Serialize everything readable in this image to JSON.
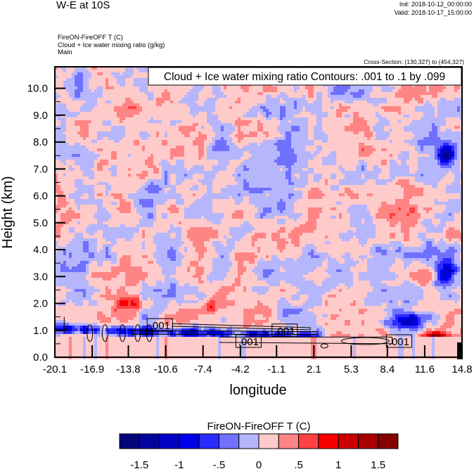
{
  "header": {
    "title": "W-E at 10S",
    "init": "Init: 2018-10-12_00:00:00",
    "valid": "Valid: 2018-10-17_15:00:00",
    "field_lines": [
      "FireON-FireOFF T   (C)",
      "Cloud + Ice water mixing ratio   (g/kg)",
      "Main"
    ],
    "cross_section": "Cross-Section: (130,327) to (454,327)"
  },
  "chart_data": {
    "type": "heatmap",
    "title": "W-E at 10S",
    "xlabel": "longitude",
    "ylabel": "Height (km)",
    "xlim": [
      -20.1,
      14.8
    ],
    "ylim": [
      0,
      10.8
    ],
    "x_ticks": [
      "-20.1",
      "-16.9",
      "-13.8",
      "-10.6",
      "-7.4",
      "-4.2",
      "-1.1",
      "2.1",
      "5.3",
      "8.4",
      "11.6",
      "14.8"
    ],
    "x_tick_values": [
      -20.1,
      -16.9,
      -13.8,
      -10.6,
      -7.4,
      -4.2,
      -1.1,
      2.1,
      5.3,
      8.4,
      11.6,
      14.8
    ],
    "y_ticks": [
      "0.0",
      "1.0",
      "2.0",
      "3.0",
      "4.0",
      "5.0",
      "6.0",
      "7.0",
      "8.0",
      "9.0",
      "10.0"
    ],
    "y_tick_values": [
      0,
      1,
      2,
      3,
      4,
      5,
      6,
      7,
      8,
      9,
      10
    ],
    "shading": {
      "variable": "FireON-FireOFF T  (C)",
      "levels": [
        -1.5,
        -1.25,
        -1,
        -0.75,
        -0.5,
        -0.25,
        0,
        0.25,
        0.5,
        0.75,
        1,
        1.25,
        1.5
      ],
      "colors": [
        "#04047d",
        "#0303a0",
        "#0202c4",
        "#0000ea",
        "#2b2bff",
        "#7070ff",
        "#b6b6fc",
        "#fecaca",
        "#ff8585",
        "#ff4141",
        "#f70000",
        "#cc0000",
        "#a80000",
        "#870000"
      ],
      "features": [
        {
          "description": "negative band",
          "lon": [
            -20.1,
            2.5
          ],
          "height": 1.05,
          "value": -1.3
        },
        {
          "description": "negative",
          "lon": [
            8.4,
            12.0
          ],
          "height": 1.3,
          "value": -1.2
        },
        {
          "description": "positive",
          "lon": 12.6,
          "height": 0.75,
          "value": 1.6
        },
        {
          "description": "negative",
          "lon": 13.2,
          "height": 3.0,
          "value": -1.0
        },
        {
          "description": "negative",
          "lon": 13.3,
          "height": 7.5,
          "value": -1.2
        },
        {
          "description": "positive",
          "lon": -13.5,
          "height": 2.0,
          "value": 0.8
        }
      ]
    },
    "contours": {
      "legend": "Cloud + Ice water mixing ratio Contours: .001 to .1 by .099",
      "labels": [
        {
          "text": ".001",
          "lon": -11.1,
          "height": 1.2
        },
        {
          "text": ".001",
          "lon": -0.4,
          "height": 1.0
        },
        {
          "text": ".001",
          "lon": -3.5,
          "height": 0.6
        },
        {
          "text": ".001",
          "lon": 9.4,
          "height": 0.6
        }
      ]
    }
  },
  "colorbar": {
    "title": "FireON-FireOFF T  (C)",
    "labels": [
      "-1.5",
      "-1",
      "-.5",
      "0",
      ".5",
      "1",
      "1.5"
    ]
  }
}
